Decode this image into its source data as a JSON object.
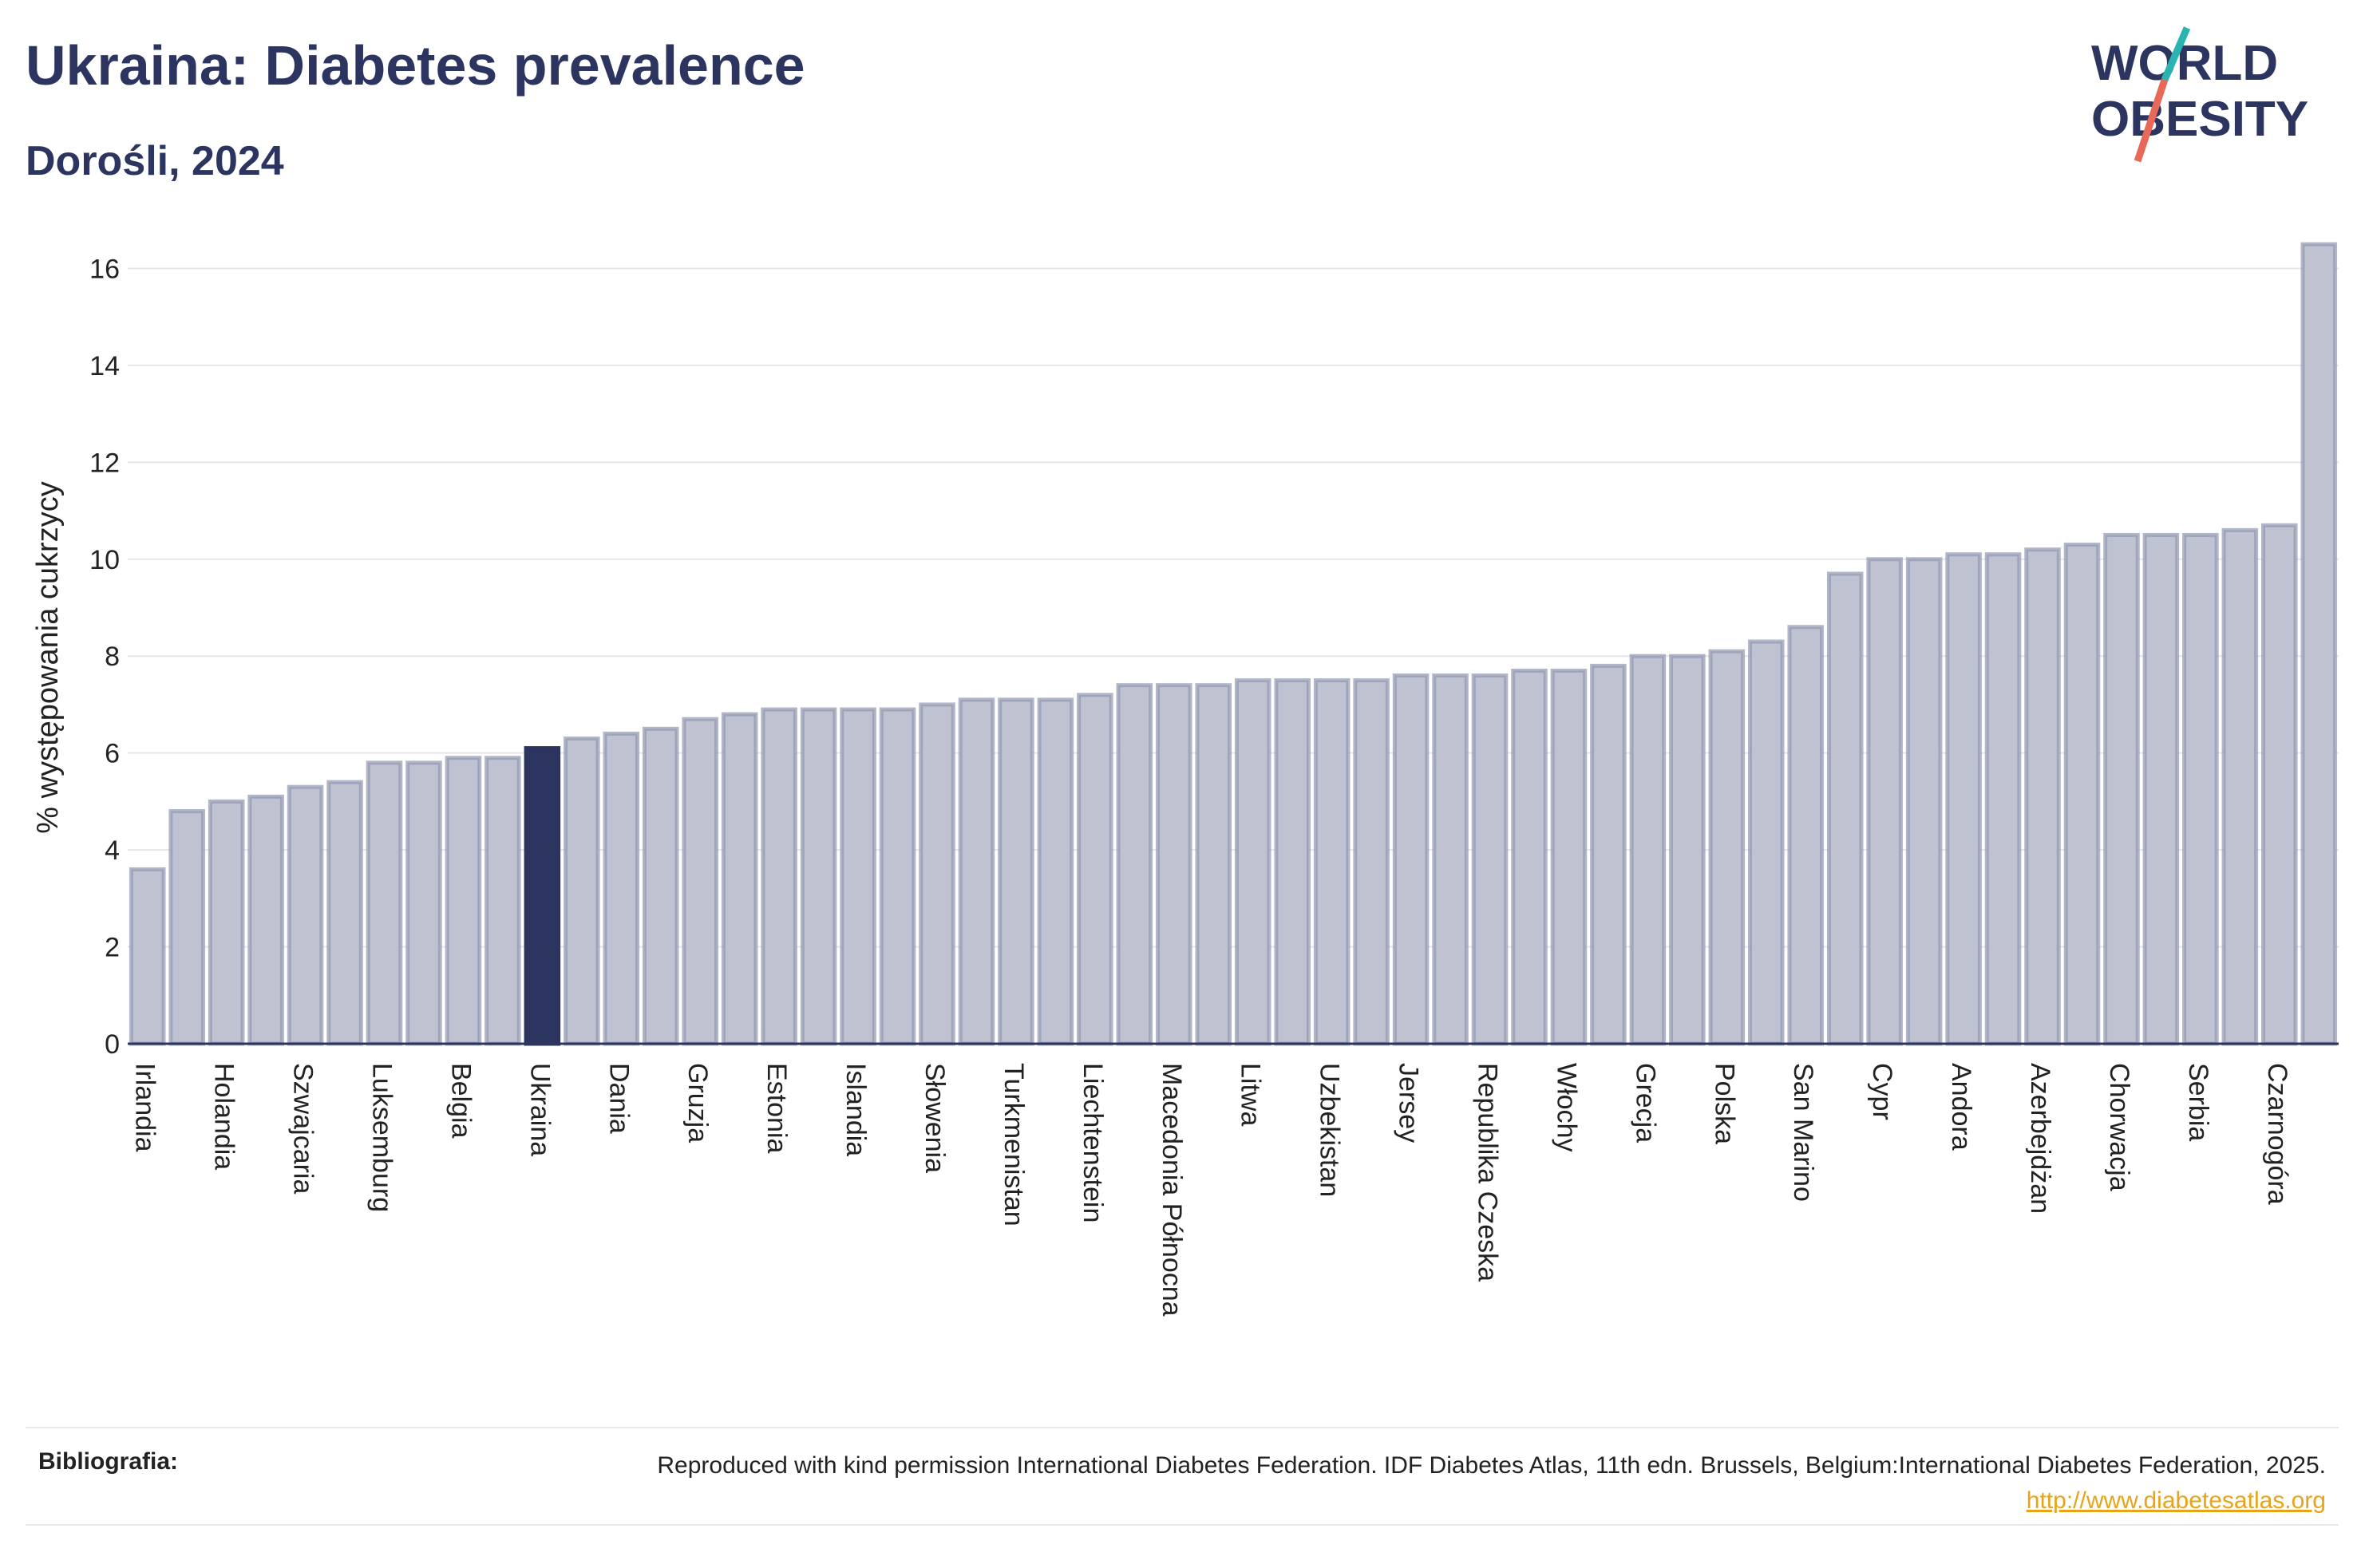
{
  "header": {
    "title": "Ukraina: Diabetes prevalence",
    "subtitle": "Dorośli, 2024"
  },
  "logo": {
    "line1": "WORLD",
    "line2": "OBESITY",
    "color_text": "#2b3560",
    "color_slash_top": "#2bb3b1",
    "color_slash_bottom": "#e8685a"
  },
  "colors": {
    "bar": "#bfc3d1",
    "bar_stroke": "#9097b1",
    "highlight": "#2b3560",
    "grid": "#e6e6ea",
    "axis": "#2b3560",
    "link": "#e8a317"
  },
  "footer": {
    "label": "Bibliografia:",
    "text": "Reproduced with kind permission International Diabetes Federation. IDF Diabetes Atlas, 11th edn. Brussels, Belgium:International Diabetes Federation, 2025. ",
    "link": "http://www.diabetesatlas.org"
  },
  "chart_data": {
    "type": "bar",
    "ylabel": "% występowania cukrzycy",
    "ylim": [
      0,
      16.6
    ],
    "yticks": [
      0,
      2,
      4,
      6,
      8,
      10,
      12,
      14,
      16
    ],
    "highlight": "Ukraina",
    "categories": [
      "Irlandia",
      "",
      "Holandia",
      "",
      "Szwajcaria",
      "",
      "Luksemburg",
      "",
      "Belgia",
      "",
      "Ukraina",
      "",
      "Dania",
      "",
      "Gruzja",
      "",
      "Estonia",
      "",
      "Islandia",
      "",
      "Słowenia",
      "",
      "Turkmenistan",
      "",
      "Liechtenstein",
      "",
      "Macedonia Północna",
      "",
      "Litwa",
      "",
      "Uzbekistan",
      "",
      "Jersey",
      "",
      "Republika Czeska",
      "",
      "Włochy",
      "",
      "Grecja",
      "",
      "Polska",
      "",
      "San Marino",
      "",
      "Cypr",
      "",
      "Andora",
      "",
      "Azerbejdżan",
      "",
      "Chorwacja",
      "",
      "Serbia",
      "",
      "Czarnogóra",
      ""
    ],
    "values": [
      3.6,
      4.8,
      5.0,
      5.1,
      5.3,
      5.4,
      5.8,
      5.8,
      5.9,
      5.9,
      6.1,
      6.3,
      6.4,
      6.5,
      6.7,
      6.8,
      6.9,
      6.9,
      6.9,
      6.9,
      7.0,
      7.1,
      7.1,
      7.1,
      7.2,
      7.4,
      7.4,
      7.4,
      7.5,
      7.5,
      7.5,
      7.5,
      7.6,
      7.6,
      7.6,
      7.7,
      7.7,
      7.8,
      8.0,
      8.0,
      8.1,
      8.3,
      8.6,
      9.7,
      10.0,
      10.0,
      10.1,
      10.1,
      10.2,
      10.3,
      10.5,
      10.5,
      10.5,
      10.6,
      10.7,
      16.5
    ]
  }
}
